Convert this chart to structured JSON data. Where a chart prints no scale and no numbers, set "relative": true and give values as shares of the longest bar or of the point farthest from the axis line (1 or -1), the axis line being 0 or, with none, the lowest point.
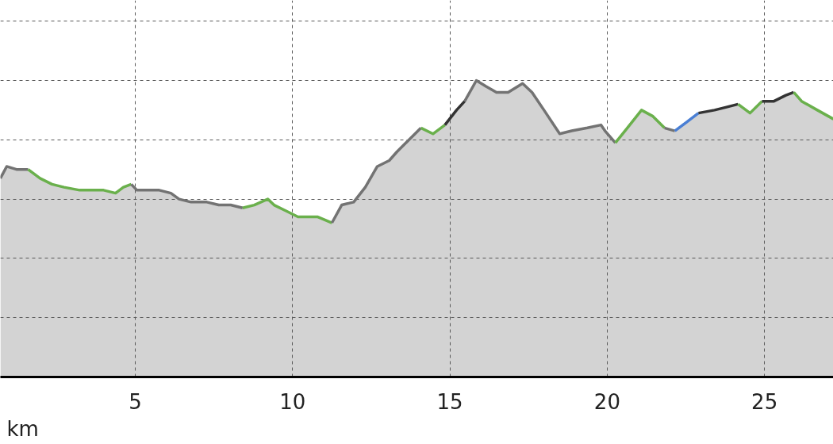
{
  "chart_data": {
    "type": "area",
    "relative": true,
    "xlabel": "km",
    "xlim": [
      0.71,
      27.19
    ],
    "xticks": [
      5,
      10,
      15,
      20,
      25
    ],
    "grid": true,
    "series": [
      {
        "color": "#d3d3d3",
        "x": [
          0.71,
          0.91,
          1.22,
          1.59,
          1.97,
          2.35,
          2.73,
          3.23,
          3.61,
          3.99,
          4.37,
          4.62,
          4.87,
          5.05,
          5.76,
          6.13,
          6.39,
          6.77,
          7.27,
          7.65,
          8.03,
          8.41,
          8.78,
          9.21,
          9.41,
          9.79,
          10.17,
          10.8,
          11.25,
          11.56,
          11.94,
          12.31,
          12.69,
          13.07,
          13.32,
          13.7,
          14.08,
          14.46,
          14.84,
          15.21,
          15.47,
          15.84,
          16.15,
          16.48,
          16.85,
          17.31,
          17.61,
          17.99,
          18.49,
          18.87,
          19.37,
          19.8,
          19.93,
          20.26,
          20.64,
          21.09,
          21.44,
          21.82,
          22.15,
          22.53,
          22.9,
          23.41,
          23.79,
          24.16,
          24.54,
          24.92,
          25.3,
          25.68,
          25.93,
          26.18,
          26.68,
          27.19
        ],
        "values": [
          0.67,
          0.71,
          0.7,
          0.7,
          0.67,
          0.65,
          0.64,
          0.63,
          0.63,
          0.63,
          0.62,
          0.64,
          0.65,
          0.63,
          0.63,
          0.62,
          0.6,
          0.59,
          0.59,
          0.58,
          0.58,
          0.57,
          0.58,
          0.6,
          0.58,
          0.56,
          0.54,
          0.54,
          0.52,
          0.58,
          0.59,
          0.64,
          0.71,
          0.73,
          0.76,
          0.8,
          0.84,
          0.82,
          0.85,
          0.9,
          0.93,
          1.0,
          0.98,
          0.96,
          0.96,
          0.99,
          0.96,
          0.9,
          0.82,
          0.83,
          0.84,
          0.85,
          0.83,
          0.79,
          0.84,
          0.9,
          0.88,
          0.84,
          0.83,
          0.86,
          0.89,
          0.9,
          0.91,
          0.92,
          0.89,
          0.93,
          0.93,
          0.95,
          0.96,
          0.93,
          0.9,
          0.87
        ],
        "colors": [
          "#737373",
          "#737373",
          "#737373",
          "#6ab04c",
          "#6ab04c",
          "#6ab04c",
          "#6ab04c",
          "#6ab04c",
          "#6ab04c",
          "#6ab04c",
          "#6ab04c",
          "#6ab04c",
          "#737373",
          "#737373",
          "#737373",
          "#737373",
          "#737373",
          "#737373",
          "#737373",
          "#737373",
          "#737373",
          "#6ab04c",
          "#6ab04c",
          "#6ab04c",
          "#6ab04c",
          "#6ab04c",
          "#6ab04c",
          "#6ab04c",
          "#737373",
          "#737373",
          "#737373",
          "#737373",
          "#737373",
          "#737373",
          "#737373",
          "#737373",
          "#6ab04c",
          "#6ab04c",
          "#333333",
          "#333333",
          "#737373",
          "#737373",
          "#737373",
          "#737373",
          "#737373",
          "#737373",
          "#737373",
          "#737373",
          "#737373",
          "#737373",
          "#737373",
          "#737373",
          "#737373",
          "#6ab04c",
          "#6ab04c",
          "#6ab04c",
          "#6ab04c",
          "#737373",
          "#4a7fd4",
          "#4a7fd4",
          "#333333",
          "#333333",
          "#333333",
          "#6ab04c",
          "#6ab04c",
          "#333333",
          "#333333",
          "#333333",
          "#6ab04c",
          "#6ab04c",
          "#6ab04c",
          "#6ab04c"
        ]
      }
    ]
  }
}
